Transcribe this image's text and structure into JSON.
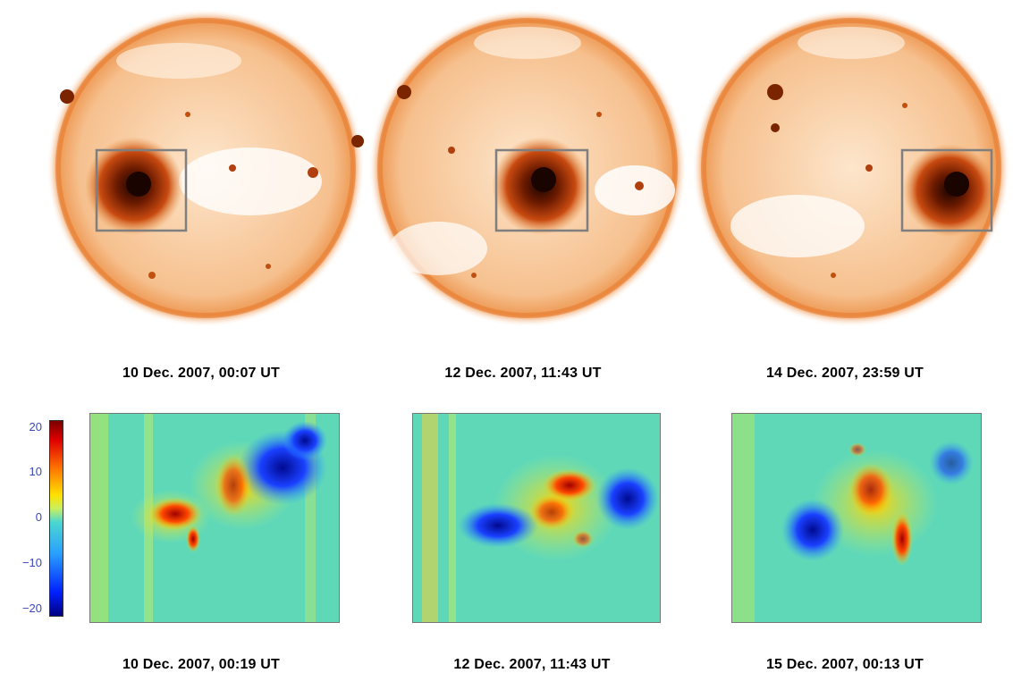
{
  "figure": {
    "top_row_captions": [
      "10 Dec. 2007, 00:07 UT",
      "12 Dec. 2007, 11:43 UT",
      "14 Dec. 2007, 23:59 UT"
    ],
    "bottom_row_captions": [
      "10 Dec. 2007, 00:19 UT",
      "12 Dec. 2007, 11:43 UT",
      "15 Dec. 2007, 00:13 UT"
    ],
    "colorbar": {
      "ticks": [
        "20",
        "10",
        "0",
        "−10",
        "−20"
      ],
      "colors": [
        "#7a0000",
        "#e00000",
        "#ff7a00",
        "#ffe000",
        "#4ad7d0",
        "#2aa0ff",
        "#0020ff",
        "#000080"
      ]
    },
    "colors": {
      "sun_base": "#f7c89a",
      "sun_limb": "#e8641a",
      "active_region": "#2a0a00",
      "box_outline": "#7f7f7f"
    }
  }
}
